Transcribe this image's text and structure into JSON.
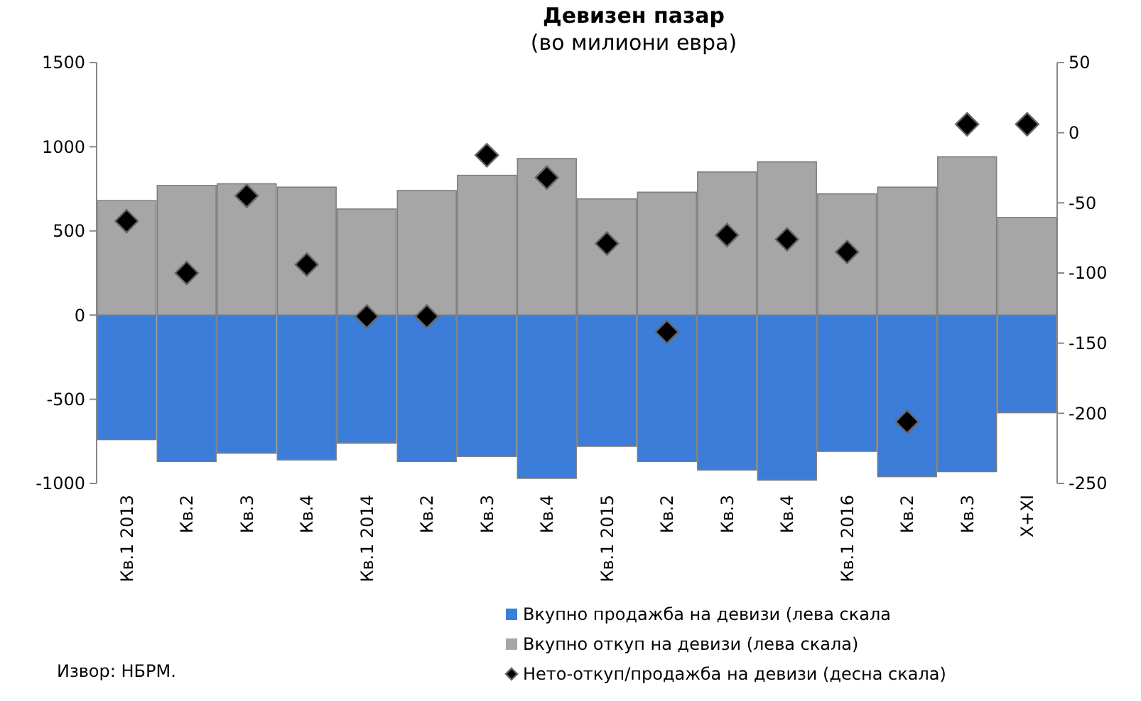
{
  "chart_data": {
    "type": "bar",
    "title": "Девизен пазар",
    "subtitle": "(во милиони евра)",
    "categories": [
      "Кв.1 2013",
      "Кв.2",
      "Кв.3",
      "Кв.4",
      "Кв.1 2014",
      "Кв.2",
      "Кв.3",
      "Кв.4",
      "Кв.1 2015",
      "Кв.2",
      "Кв.3",
      "Кв.4",
      "Кв.1 2016",
      "Кв.2",
      "Кв.3",
      "X+XI"
    ],
    "series": [
      {
        "name": "Вкупно продажба на девизи (лева скала",
        "color": "#3b7dd8",
        "values": [
          -740,
          -870,
          -820,
          -860,
          -760,
          -870,
          -840,
          -970,
          -780,
          -870,
          -920,
          -980,
          -810,
          -960,
          -930,
          -580
        ]
      },
      {
        "name": "Вкупно откуп на девизи (лева скала)",
        "color": "#a6a6a6",
        "values": [
          680,
          770,
          780,
          760,
          630,
          740,
          830,
          930,
          690,
          730,
          850,
          910,
          720,
          760,
          940,
          580
        ]
      },
      {
        "name": "Нето-откуп/продажба на девизи (десна скала)",
        "color": "#000000",
        "type": "scatter",
        "axis": "y2",
        "marker": "diamond",
        "values": [
          -63,
          -100,
          -45,
          -94,
          -131,
          -131,
          -16,
          -32,
          -79,
          -142,
          -73,
          -76,
          -85,
          -206,
          6,
          6
        ]
      }
    ],
    "stacked": true,
    "ylim": [
      -1000,
      1500
    ],
    "yticks": [
      -1000,
      -500,
      0,
      500,
      1000,
      1500
    ],
    "y2lim": [
      -250,
      50
    ],
    "y2ticks": [
      -250,
      -200,
      -150,
      -100,
      -50,
      0,
      50
    ],
    "grid": false,
    "legend": "bottom",
    "annotations": [
      "Извор: НБРМ."
    ]
  }
}
